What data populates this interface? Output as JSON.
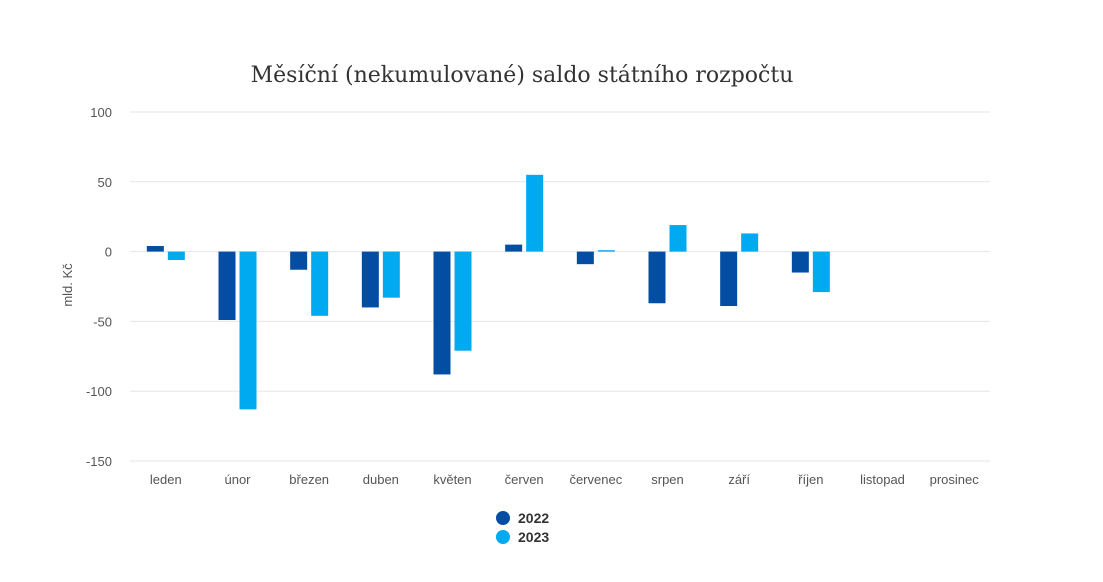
{
  "chart_data": {
    "type": "bar",
    "title": "Měsíční (nekumulované) saldo státního rozpočtu",
    "ylabel": "mld. Kč",
    "xlabel": "",
    "ylim": [
      -150,
      100
    ],
    "yticks": [
      100,
      50,
      0,
      -50,
      -100,
      -150
    ],
    "grid": true,
    "legend_position": "bottom-center",
    "categories": [
      "leden",
      "únor",
      "březen",
      "duben",
      "květen",
      "červen",
      "červenec",
      "srpen",
      "září",
      "říjen",
      "listopad",
      "prosinec"
    ],
    "series": [
      {
        "name": "2022",
        "color": "#034ea2",
        "values": [
          4,
          -49,
          -13,
          -40,
          -88,
          5,
          -9,
          -37,
          -39,
          -15,
          null,
          null
        ]
      },
      {
        "name": "2023",
        "color": "#00aaf0",
        "values": [
          -6,
          -113,
          -46,
          -33,
          -71,
          55,
          1,
          19,
          13,
          -29,
          null,
          null
        ]
      }
    ]
  }
}
